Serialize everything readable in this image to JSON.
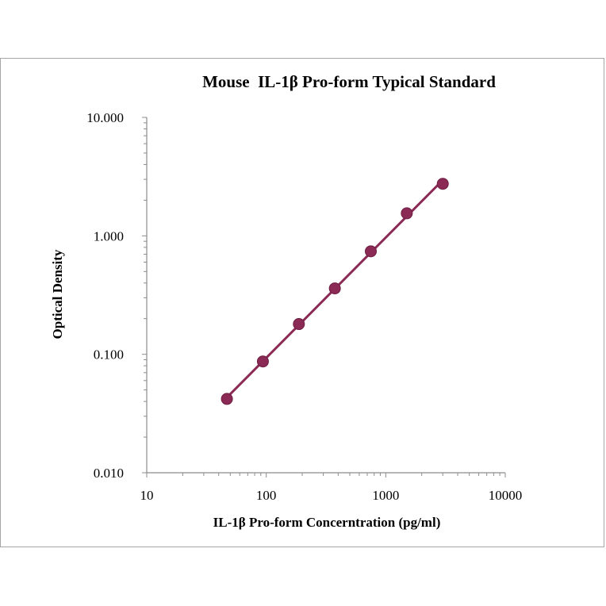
{
  "chart_data": {
    "type": "scatter",
    "title": "Mouse  IL-1β Pro-form Typical Standard",
    "xlabel": "IL-1β Pro-form Concerntration (pg/ml)",
    "ylabel": "Optical Density",
    "x_scale": "log",
    "y_scale": "log",
    "xlim": [
      10,
      10000
    ],
    "ylim": [
      0.01,
      10
    ],
    "x_ticks": [
      "10",
      "100",
      "1000",
      "10000"
    ],
    "y_ticks": [
      "0.010",
      "0.100",
      "1.000",
      "10.000"
    ],
    "grid": false,
    "legend": "none",
    "series": [
      {
        "x": [
          46.875,
          93.75,
          187.5,
          375,
          750,
          1500,
          3000
        ],
        "y": [
          0.042,
          0.087,
          0.18,
          0.36,
          0.74,
          1.55,
          2.75
        ],
        "color": "#8b2a55",
        "trendline": true
      }
    ]
  }
}
